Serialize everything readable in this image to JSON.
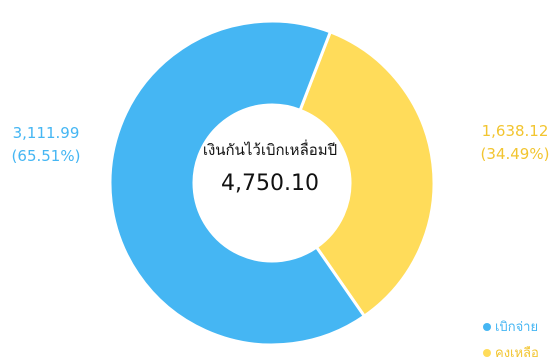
{
  "chart_data": {
    "type": "pie",
    "categories": [
      "เบิกจ่าย",
      "คงเหลือ"
    ],
    "values": [
      3111.99,
      1638.12
    ],
    "value_labels": [
      "3,111.99",
      "1,638.12"
    ],
    "percent_labels": [
      "(65.51%)",
      "(34.49%)"
    ],
    "colors": [
      "#45B6F3",
      "#FFDC5A"
    ],
    "center_title": "เงินกันไว้เบิกเหลื่อมปี",
    "center_value": "4,750.10",
    "legend_position": "bottom-right"
  }
}
